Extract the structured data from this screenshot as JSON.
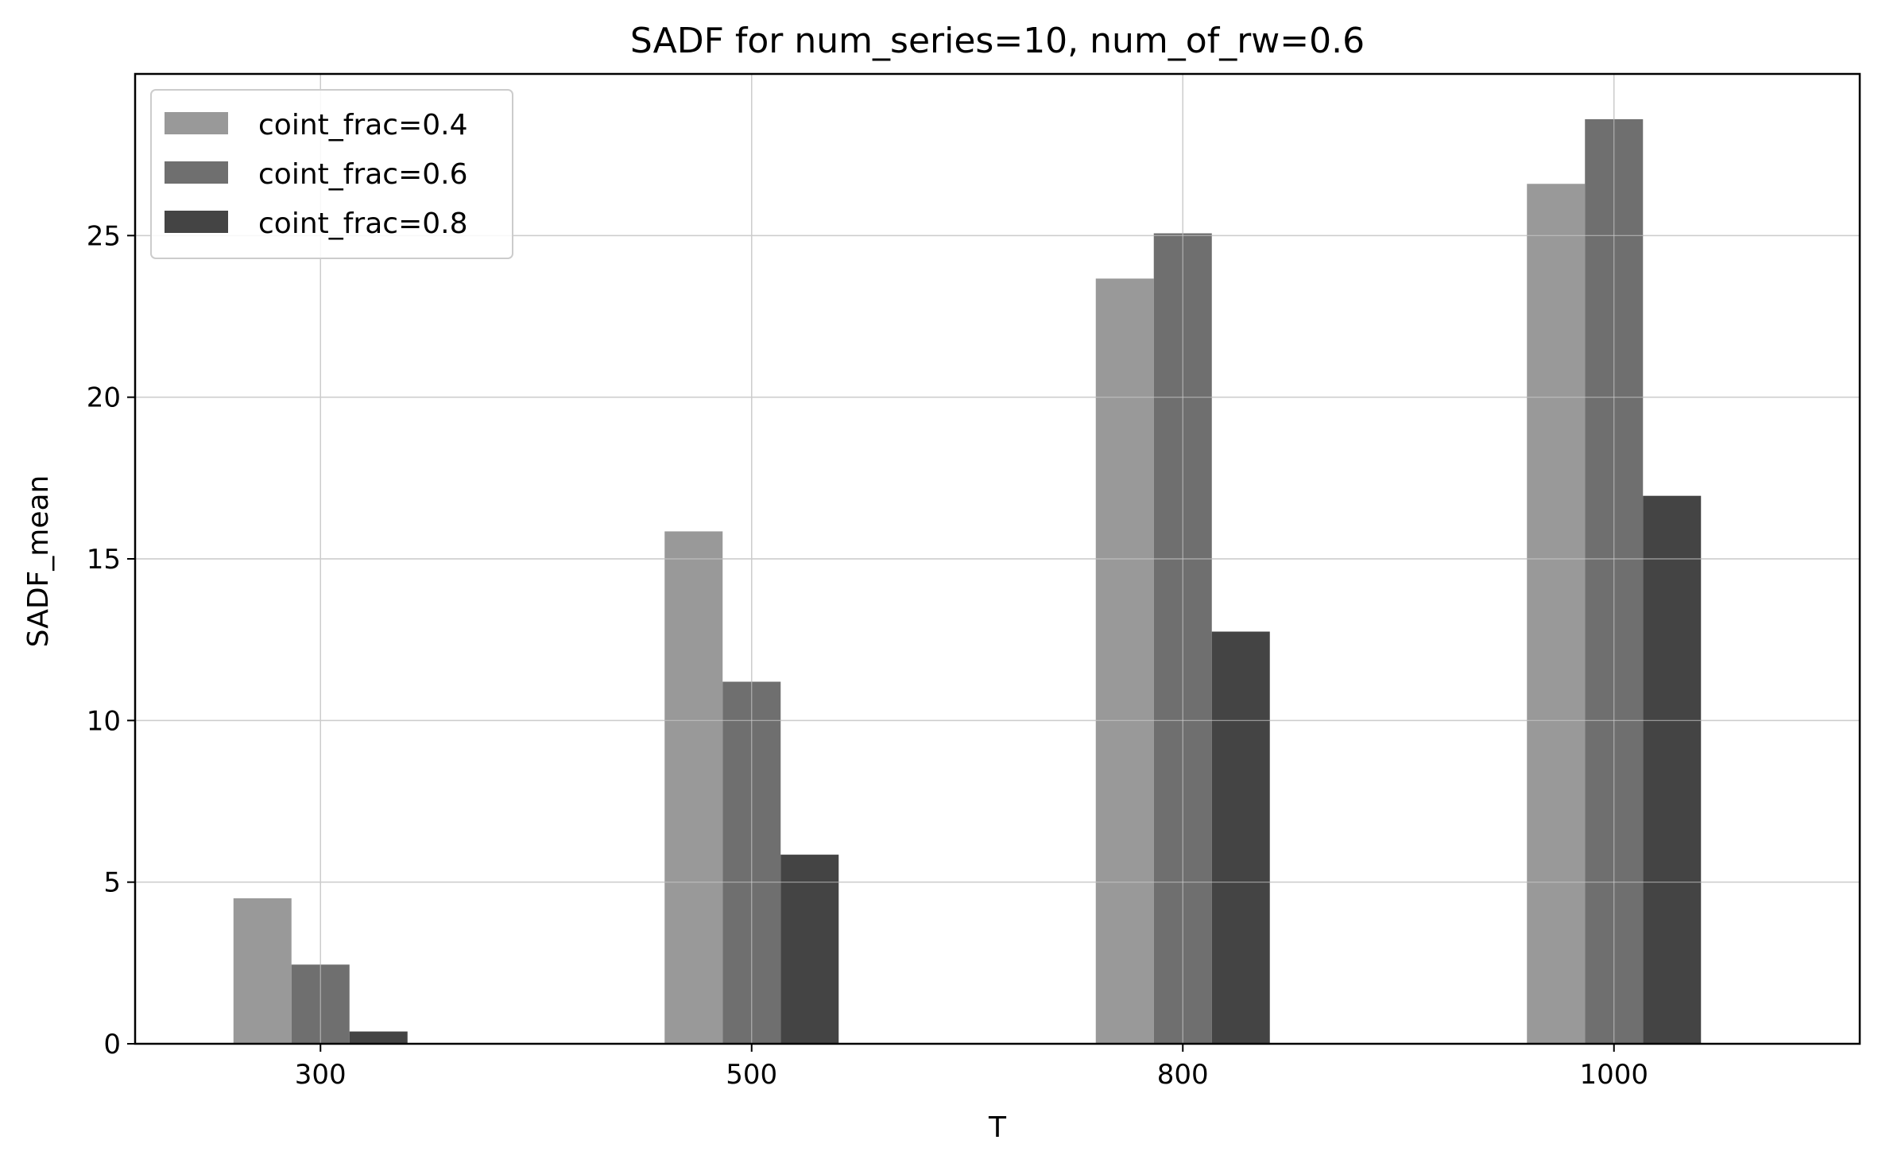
{
  "chart_data": {
    "type": "bar",
    "title": "SADF for num_series=10, num_of_rw=0.6",
    "xlabel": "T",
    "ylabel": "SADF_mean",
    "categories": [
      "300",
      "500",
      "800",
      "1000"
    ],
    "series": [
      {
        "name": "coint_frac=0.4",
        "color": "#999999",
        "values": [
          4.5,
          15.85,
          23.67,
          26.6
        ]
      },
      {
        "name": "coint_frac=0.6",
        "color": "#6f6f6f",
        "values": [
          2.45,
          11.2,
          25.07,
          28.6
        ]
      },
      {
        "name": "coint_frac=0.8",
        "color": "#444444",
        "values": [
          0.38,
          5.85,
          12.75,
          16.95
        ]
      }
    ],
    "ylim": [
      0,
      30
    ],
    "yticks": [
      0,
      5,
      10,
      15,
      20,
      25
    ],
    "grid": true,
    "legend_position": "top-left"
  }
}
